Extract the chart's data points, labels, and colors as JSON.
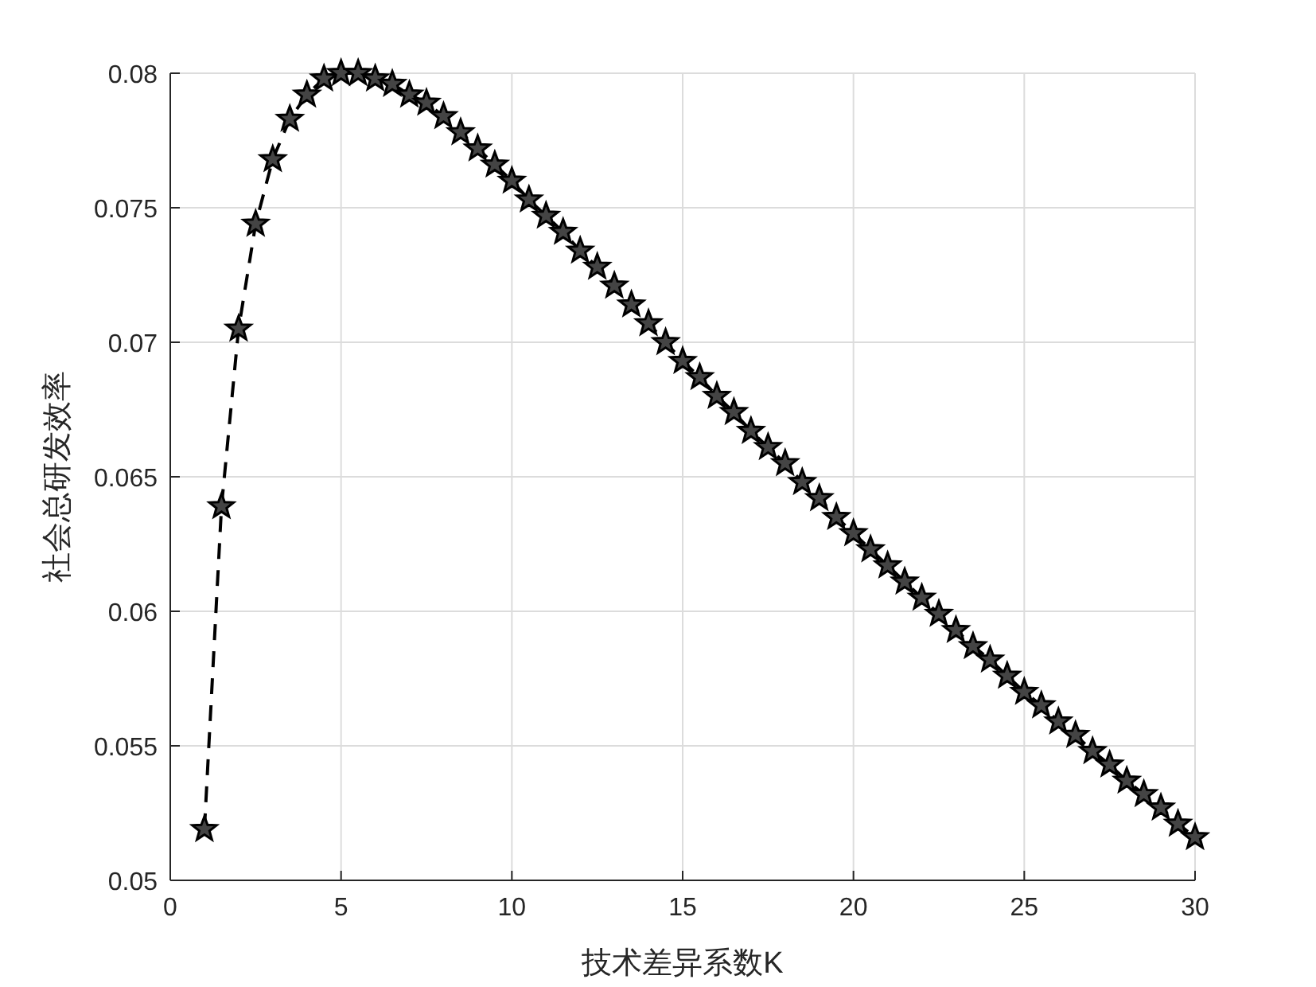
{
  "chart_data": {
    "type": "line",
    "xlabel": "技术差异系数K",
    "ylabel": "社会总研发效率",
    "x": [
      1,
      1.5,
      2,
      2.5,
      3,
      3.5,
      4,
      4.5,
      5,
      5.5,
      6,
      6.5,
      7,
      7.5,
      8,
      8.5,
      9,
      9.5,
      10,
      10.5,
      11,
      11.5,
      12,
      12.5,
      13,
      13.5,
      14,
      14.5,
      15,
      15.5,
      16,
      16.5,
      17,
      17.5,
      18,
      18.5,
      19,
      19.5,
      20,
      20.5,
      21,
      21.5,
      22,
      22.5,
      23,
      23.5,
      24,
      24.5,
      25,
      25.5,
      26,
      26.5,
      27,
      27.5,
      28,
      28.5,
      29,
      29.5,
      30
    ],
    "series": [
      {
        "color": "#000000",
        "values": [
          0.0519,
          0.0639,
          0.0705,
          0.0744,
          0.0768,
          0.0783,
          0.0792,
          0.0798,
          0.08,
          0.08,
          0.0798,
          0.0796,
          0.0792,
          0.0789,
          0.0784,
          0.0778,
          0.0772,
          0.0766,
          0.076,
          0.0753,
          0.0747,
          0.0741,
          0.0734,
          0.0728,
          0.0721,
          0.0714,
          0.0707,
          0.07,
          0.0693,
          0.0687,
          0.068,
          0.0674,
          0.0667,
          0.0661,
          0.0655,
          0.0648,
          0.0642,
          0.0635,
          0.0629,
          0.0623,
          0.0617,
          0.0611,
          0.0605,
          0.0599,
          0.0593,
          0.0587,
          0.0582,
          0.0576,
          0.057,
          0.0565,
          0.0559,
          0.0554,
          0.0548,
          0.0543,
          0.0537,
          0.0532,
          0.0527,
          0.0521,
          0.0516
        ]
      }
    ],
    "xlim": [
      0,
      30
    ],
    "xticks": [
      0,
      5,
      10,
      15,
      20,
      25,
      30
    ],
    "ylim": [
      0.05,
      0.08
    ],
    "yticks": [
      0.05,
      0.055,
      0.06,
      0.065,
      0.07,
      0.075,
      0.08
    ],
    "grid": true,
    "marker": "star",
    "line_style": "dashed"
  }
}
